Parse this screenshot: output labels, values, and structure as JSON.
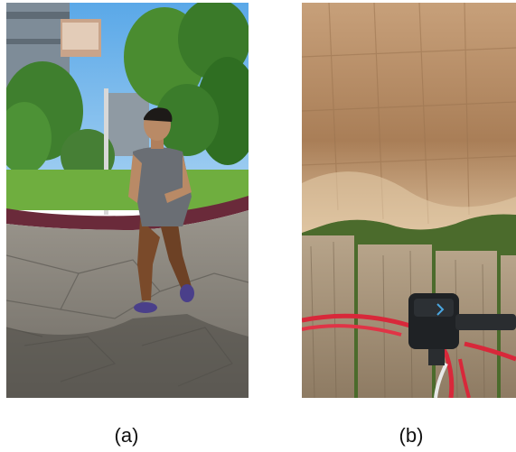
{
  "figure": {
    "panels": [
      {
        "id": "a",
        "label": "(a)"
      },
      {
        "id": "b",
        "label": "(b)"
      }
    ]
  }
}
